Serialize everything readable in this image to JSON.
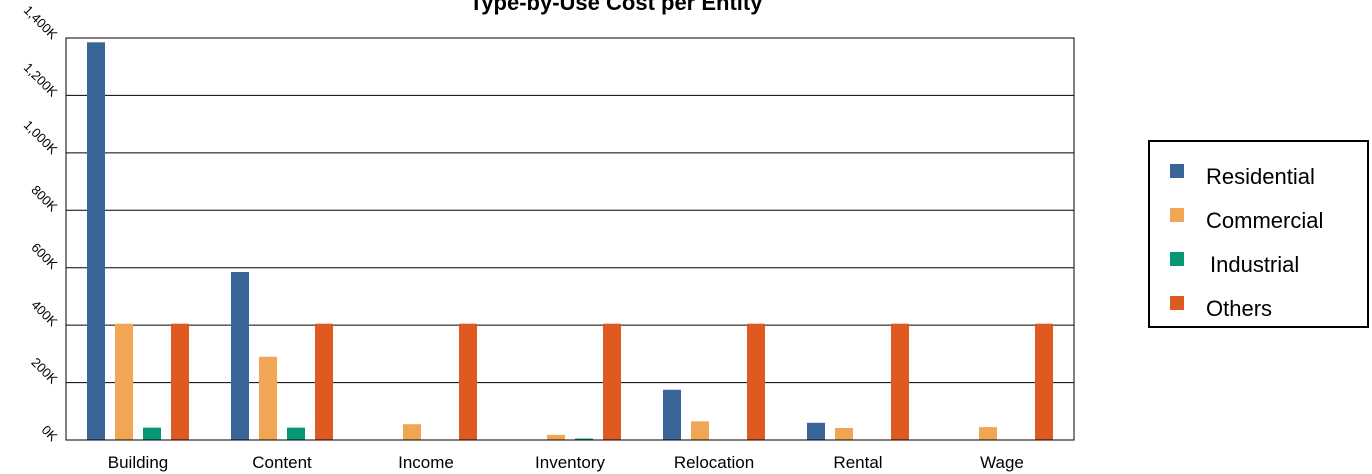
{
  "chart_data": {
    "type": "bar",
    "title": "Type-by-Use Cost per Entity",
    "categories": [
      "Building",
      "Content",
      "Income",
      "Inventory",
      "Relocation",
      "Rental",
      "Wage"
    ],
    "y_ticks": [
      "0K",
      "200K",
      "400K",
      "600K",
      "800K",
      "1,000K",
      "1,200K",
      "1,400K"
    ],
    "ylim": [
      0,
      1400000
    ],
    "grid": true,
    "legend_position": "right",
    "series": [
      {
        "name": "Residential",
        "color": "#3a6598",
        "values": [
          1385000,
          585000,
          0,
          0,
          175000,
          60000,
          0
        ]
      },
      {
        "name": "Commercial",
        "color": "#f2a655",
        "values": [
          405000,
          290000,
          55000,
          18000,
          65000,
          42000,
          45000
        ]
      },
      {
        "name": "Industrial",
        "color": "#079774",
        "values": [
          43000,
          43000,
          0,
          5000,
          0,
          0,
          0
        ]
      },
      {
        "name": "Others",
        "color": "#dd5a21",
        "values": [
          405000,
          405000,
          405000,
          405000,
          405000,
          405000,
          405000
        ]
      }
    ]
  }
}
